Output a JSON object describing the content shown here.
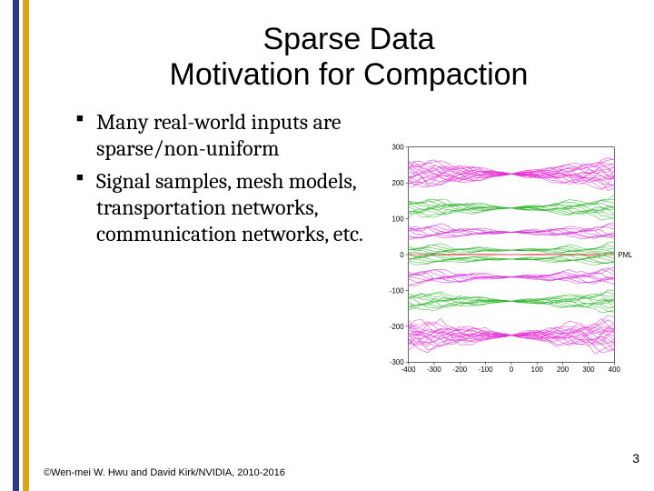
{
  "title_line1": "Sparse Data",
  "title_line2": "Motivation for Compaction",
  "bullets": {
    "b1": "Many real-world inputs are sparse/non-uniform",
    "b2": "Signal samples, mesh models, transportation networks, communication networks, etc."
  },
  "copyright": "©Wen-mei W. Hwu and David Kirk/NVIDIA, 2010-2016",
  "page_number": "3",
  "figure": {
    "y_ticks": [
      "300",
      "200",
      "100",
      "0",
      "-100",
      "-200",
      "-300"
    ],
    "x_ticks": [
      "-400",
      "-300",
      "-200",
      "-100",
      "0",
      "100",
      "200",
      "300",
      "400"
    ],
    "right_label": "PML",
    "bands": [
      {
        "y": 40,
        "color": "#e431d4",
        "thickness": 28,
        "spread": 14
      },
      {
        "y": 78,
        "color": "#2fb52f",
        "thickness": 18,
        "spread": 10
      },
      {
        "y": 105,
        "color": "#d42fd4",
        "thickness": 14,
        "spread": 8
      },
      {
        "y": 125,
        "color": "#2fb52f",
        "thickness": 10,
        "spread": 6
      },
      {
        "y": 130,
        "color": "#d71e1e",
        "thickness": 2,
        "spread": 0
      },
      {
        "y": 135,
        "color": "#2fb52f",
        "thickness": 10,
        "spread": 6
      },
      {
        "y": 155,
        "color": "#d42fd4",
        "thickness": 14,
        "spread": 8
      },
      {
        "y": 182,
        "color": "#2fb52f",
        "thickness": 18,
        "spread": 10
      },
      {
        "y": 220,
        "color": "#e431d4",
        "thickness": 28,
        "spread": 14
      }
    ],
    "axis_color": "#000000",
    "background": "#ffffff"
  },
  "stripe": {
    "blue": "#2e3a87",
    "gold": "#e0a800"
  }
}
